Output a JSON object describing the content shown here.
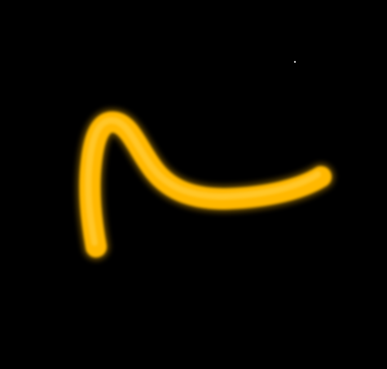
{
  "scene": {
    "background_color": "#000000",
    "stroke": {
      "shape": "yellow-curved-stroke",
      "color_main": "#FFB800",
      "color_highlight": "#FFD24A",
      "color_shadow": "#E59A00"
    },
    "speck": {
      "shape": "small-dot",
      "color": "#CFCFCF"
    }
  }
}
